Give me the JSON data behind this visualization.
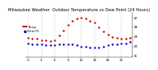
{
  "title": "Milwaukee Weather  Outdoor Temperature vs Dew Point (24 Hours)",
  "temp_color": "#cc0000",
  "dewp_color": "#0000cc",
  "background_color": "#ffffff",
  "grid_color": "#aaaaaa",
  "x_hours": [
    0,
    1,
    2,
    3,
    4,
    5,
    6,
    7,
    8,
    9,
    10,
    11,
    12,
    13,
    14,
    15,
    16,
    17,
    18,
    19,
    20,
    21,
    22,
    23
  ],
  "temp_values": [
    28,
    27,
    27,
    26,
    26,
    25,
    26,
    30,
    35,
    40,
    44,
    46,
    47,
    46,
    44,
    42,
    38,
    34,
    31,
    29,
    28,
    27,
    27,
    28
  ],
  "dewp_values": [
    23,
    22,
    22,
    22,
    21,
    21,
    21,
    22,
    22,
    22,
    22,
    21,
    20,
    20,
    19,
    19,
    19,
    20,
    21,
    22,
    22,
    23,
    23,
    24
  ],
  "ylim": [
    10,
    52
  ],
  "yticks": [
    11,
    20,
    29,
    38,
    47
  ],
  "ytick_labels": [
    "11",
    "20",
    "29",
    "38",
    "47"
  ],
  "xtick_positions": [
    0,
    3,
    6,
    9,
    12,
    15,
    18,
    21
  ],
  "xtick_labels": [
    "0",
    "3",
    "6",
    "9",
    "12",
    "15",
    "18",
    "21"
  ],
  "vlines": [
    0,
    3,
    6,
    9,
    12,
    15,
    18,
    21
  ],
  "legend_temp_label": "Temp",
  "legend_dewp_label": "Dew Pt",
  "title_fontsize": 3.8,
  "tick_fontsize": 3.0,
  "legend_fontsize": 3.0,
  "marker_size": 0.8
}
